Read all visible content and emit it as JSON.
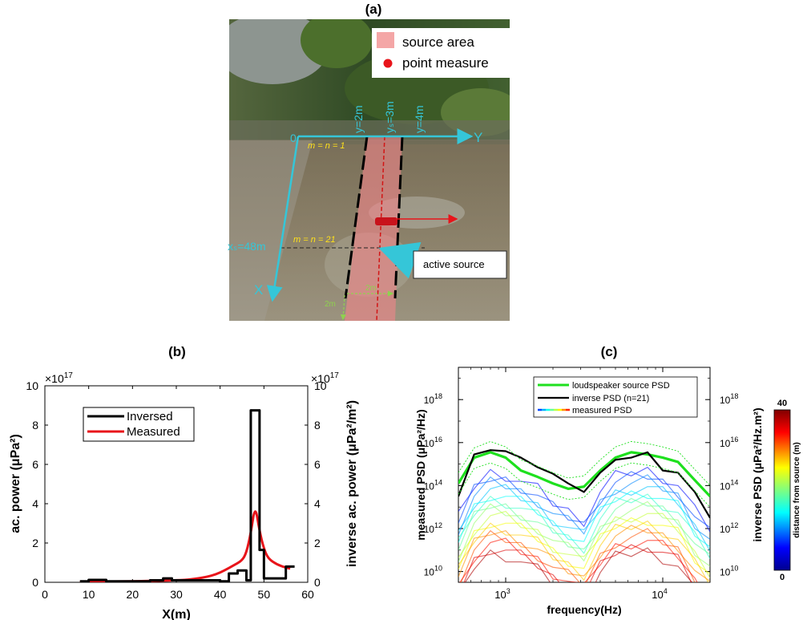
{
  "panel_a": {
    "label": "(a)",
    "legend": {
      "source": "source area",
      "point": "point measure",
      "source_color": "#f4a6a6",
      "point_color": "#e8141a"
    },
    "origin": "0",
    "y_axis": "Y",
    "x_axis": "X",
    "lines": [
      "y=2m",
      "yₛ=3m",
      "y=4m"
    ],
    "m_top": "m = n = 1",
    "m_bottom": "m = n = 21",
    "xs": "xₛ=48m",
    "active_source": "active source",
    "dim_width": "2m",
    "dim_length": "2m",
    "colors": {
      "axis": "#35c6d8",
      "m_text": "#ffe11a",
      "arrow_red": "#e8141a",
      "arrow_blue": "#29a6e6",
      "dim": "#8fd14f"
    }
  },
  "chart_data": [
    {
      "type": "line",
      "label": "(b)",
      "xlabel": "X(m)",
      "ylabel": "ac. power (μPa²)",
      "ylabel_right": "inverse ac. power (μPa²/m²)",
      "exponent": "×10",
      "exponent_power": "17",
      "xlim": [
        0,
        60
      ],
      "ylim": [
        0,
        10
      ],
      "xticks": [
        "0",
        "10",
        "20",
        "30",
        "40",
        "50",
        "60"
      ],
      "yticks": [
        "0",
        "2",
        "4",
        "6",
        "8",
        "10"
      ],
      "legend": "top-left",
      "series": [
        {
          "name": "Inversed",
          "color": "#000000",
          "step": true,
          "x": [
            8,
            10,
            10,
            14,
            14,
            24,
            24,
            27,
            27,
            29,
            29,
            40,
            40,
            42,
            42,
            44,
            44,
            46,
            46,
            47,
            47,
            49,
            49,
            50,
            50,
            52,
            52,
            55,
            55,
            57
          ],
          "y": [
            0.05,
            0.05,
            0.12,
            0.12,
            0.05,
            0.05,
            0.1,
            0.1,
            0.2,
            0.2,
            0.1,
            0.1,
            0.05,
            0.05,
            0.45,
            0.45,
            0.6,
            0.6,
            0.1,
            0.1,
            8.75,
            8.75,
            1.65,
            1.65,
            0.2,
            0.2,
            0.2,
            0.2,
            0.8,
            0.8
          ]
        },
        {
          "name": "Measured",
          "color": "#e8141a",
          "step": false,
          "x": [
            8,
            12,
            16,
            20,
            24,
            28,
            32,
            35,
            37,
            39,
            41,
            43,
            45,
            46,
            47,
            48,
            49,
            50,
            51,
            53,
            55,
            56
          ],
          "y": [
            0.0,
            0.02,
            0.04,
            0.05,
            0.07,
            0.09,
            0.12,
            0.2,
            0.28,
            0.4,
            0.6,
            0.85,
            1.1,
            1.5,
            2.5,
            3.95,
            2.6,
            1.7,
            1.2,
            0.9,
            0.75,
            0.7
          ]
        }
      ]
    },
    {
      "type": "line",
      "label": "(c)",
      "xlabel": "frequency(Hz)",
      "ylabel": "measured PSD (μPa²/Hz)",
      "ylabel_right": "inverse  PSD (μPa²/Hz.m²)",
      "log_x": true,
      "log_y": true,
      "xlim": [
        500,
        20000
      ],
      "ylim": [
        9.5,
        19.5
      ],
      "ylim_note": "log10 units",
      "xticks": [
        {
          "base": "10",
          "exp": "3",
          "v": 1000
        },
        {
          "base": "10",
          "exp": "4",
          "v": 10000
        }
      ],
      "yticks": [
        {
          "base": "10",
          "exp": "10",
          "v": 10
        },
        {
          "base": "10",
          "exp": "12",
          "v": 12
        },
        {
          "base": "10",
          "exp": "14",
          "v": 14
        },
        {
          "base": "10",
          "exp": "16",
          "v": 16
        },
        {
          "base": "10",
          "exp": "18",
          "v": 18
        }
      ],
      "x": [
        500,
        630,
        800,
        1000,
        1250,
        1600,
        2000,
        2500,
        3150,
        4000,
        5000,
        6300,
        8000,
        10000,
        12500,
        16000,
        20000
      ],
      "series": [
        {
          "name": "loudspeaker source PSD",
          "color": "#1ee01e",
          "width": 3.2,
          "y": [
            14.1,
            15.3,
            15.55,
            15.3,
            14.7,
            14.4,
            14.1,
            13.85,
            13.95,
            14.7,
            15.3,
            15.55,
            15.45,
            15.3,
            15.1,
            14.25,
            13.5
          ]
        },
        {
          "name": "inverse  PSD (n=21)",
          "color": "#000000",
          "width": 2.2,
          "y": [
            13.5,
            15.45,
            15.65,
            15.6,
            15.3,
            14.85,
            14.55,
            14.1,
            13.7,
            14.6,
            15.2,
            15.3,
            15.55,
            14.7,
            14.6,
            13.7,
            12.5
          ]
        },
        {
          "name": "",
          "color": "#1ee01e",
          "width": 0.9,
          "dash": true,
          "y": [
            14.6,
            15.75,
            16.05,
            15.8,
            15.2,
            14.9,
            14.6,
            14.35,
            14.45,
            15.2,
            15.8,
            16.05,
            15.95,
            15.8,
            15.6,
            14.75,
            14.0
          ]
        },
        {
          "name": "",
          "color": "#1ee01e",
          "width": 0.9,
          "dash": true,
          "y": [
            13.6,
            14.8,
            15.05,
            14.8,
            14.2,
            13.9,
            13.6,
            13.35,
            13.45,
            14.2,
            14.8,
            15.05,
            14.95,
            14.8,
            14.6,
            13.75,
            13.0
          ]
        }
      ],
      "measured_legend": "measured PSD",
      "measured_shape": [
        -3.6,
        -2.1,
        -1.5,
        -1.6,
        -1.9,
        -2.3,
        -2.9,
        -3.3,
        -3.7,
        -2.4,
        -1.7,
        -1.5,
        -1.4,
        -1.7,
        -2.1,
        -3.3,
        -4.1
      ],
      "measured_offsets": [
        -0.2,
        -0.45,
        -0.7,
        -0.95,
        -1.2,
        -1.45,
        -1.7,
        -1.95,
        -2.2,
        -2.45,
        -2.7,
        -2.95,
        -3.2,
        -3.45,
        -3.7,
        -3.95
      ],
      "colorbar": {
        "label": "distance from source (m)",
        "min": "0",
        "max": "40"
      }
    }
  ]
}
